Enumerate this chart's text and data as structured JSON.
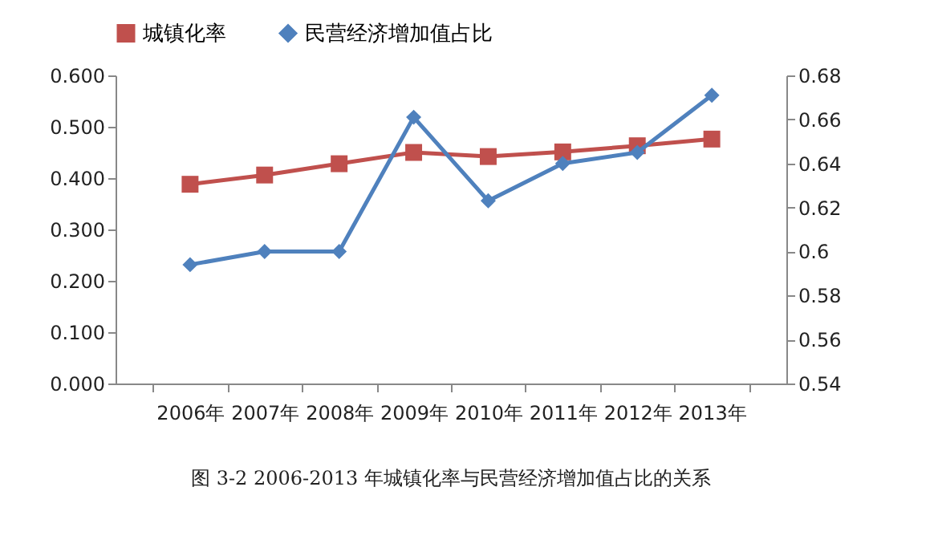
{
  "chart_data": {
    "type": "line",
    "categories": [
      "2006年",
      "2007年",
      "2008年",
      "2009年",
      "2010年",
      "2011年",
      "2012年",
      "2013年"
    ],
    "series": [
      {
        "name": "城镇化率",
        "color": "#c0504d",
        "marker": "square",
        "values": [
          0.388,
          0.406,
          0.428,
          0.45,
          0.442,
          0.451,
          0.463,
          0.476
        ]
      },
      {
        "name": "民营经济增加值占比",
        "color": "#4f81bd",
        "marker": "diamond",
        "axis": "y2",
        "values": [
          0.594,
          0.6,
          0.6,
          0.661,
          0.623,
          0.64,
          0.645,
          0.671
        ]
      }
    ],
    "ylim": [
      0,
      0.6
    ],
    "yticks": [
      {
        "value": 0,
        "label": "0.000"
      },
      {
        "value": 0.1,
        "label": "0.100"
      },
      {
        "value": 0.2,
        "label": "0.200"
      },
      {
        "value": 0.3,
        "label": "0.300"
      },
      {
        "value": 0.4,
        "label": "0.400"
      },
      {
        "value": 0.5,
        "label": "0.500"
      },
      {
        "value": 0.6,
        "label": "0.600"
      }
    ],
    "y2lim": [
      0.54,
      0.68
    ],
    "y2ticks": [
      0.54,
      0.56,
      0.58,
      0.6,
      0.62,
      0.64,
      0.66,
      0.68
    ],
    "grid": false,
    "legend": "top",
    "annotations": [
      "图 3-2    2006-2013 年城镇化率与民营经济增加值占比的关系"
    ]
  }
}
